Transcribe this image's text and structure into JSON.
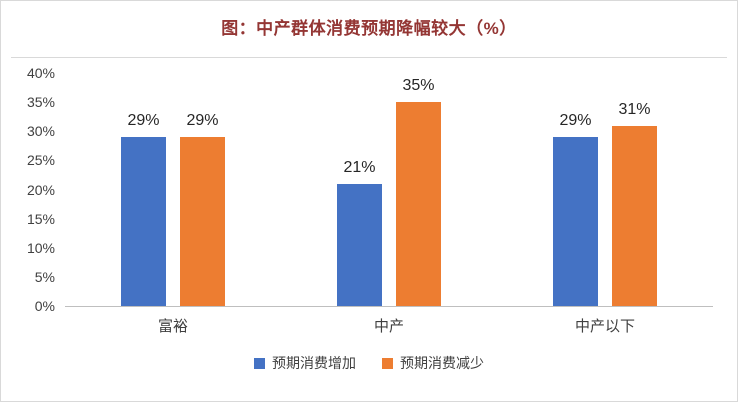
{
  "chart_data": {
    "type": "bar",
    "title": "图：中产群体消费预期降幅较大（%）",
    "categories": [
      "富裕",
      "中产",
      "中产以下"
    ],
    "series": [
      {
        "key": "expected-consumption-increase",
        "name": "预期消费增加",
        "color": "#4472C4",
        "values": [
          29,
          21,
          29
        ],
        "data_labels": [
          "29%",
          "21%",
          "29%"
        ]
      },
      {
        "key": "expected-consumption-decrease",
        "name": "预期消费减少",
        "color": "#ED7D31",
        "values": [
          29,
          35,
          31
        ],
        "data_labels": [
          "29%",
          "35%",
          "31%"
        ]
      }
    ],
    "ylim": [
      0,
      40
    ],
    "yticks": [
      {
        "value": 0,
        "label": "0%"
      },
      {
        "value": 5,
        "label": "5%"
      },
      {
        "value": 10,
        "label": "10%"
      },
      {
        "value": 15,
        "label": "15%"
      },
      {
        "value": 20,
        "label": "20%"
      },
      {
        "value": 25,
        "label": "25%"
      },
      {
        "value": 30,
        "label": "30%"
      },
      {
        "value": 35,
        "label": "35%"
      },
      {
        "value": 40,
        "label": "40%"
      },
      {
        "value": 40,
        "label": ""
      }
    ],
    "gridlines": false,
    "legend_position": "bottom"
  },
  "colors": {
    "title": "#943634",
    "axis_line": "#bfbfbf",
    "text": "#404040",
    "series_increase": "#4472C4",
    "series_decrease": "#ED7D31"
  }
}
